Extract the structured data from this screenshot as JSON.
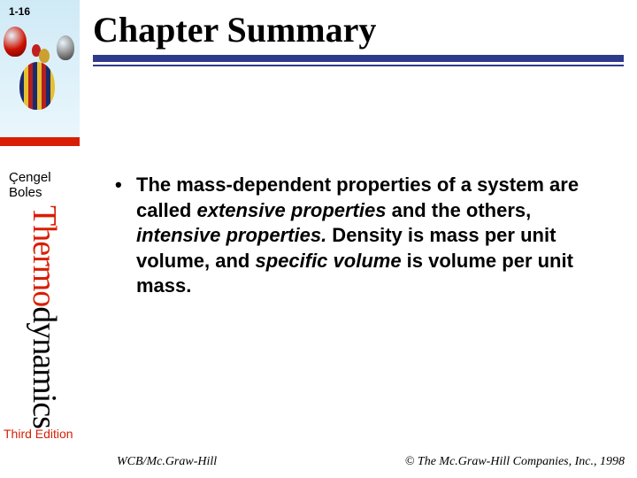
{
  "page_number": "1-16",
  "title": "Chapter Summary",
  "authors": {
    "line1": "Çengel",
    "line2": "Boles"
  },
  "spine": {
    "part1": "Thermo",
    "part2": "dynamics"
  },
  "edition": "Third Edition",
  "bullet": {
    "marker": "•",
    "seg1": "The mass-dependent properties of a system are called ",
    "seg2_it": "extensive properties",
    "seg3": " and the others, ",
    "seg4_it": "intensive properties.",
    "seg5": " Density",
    "seg6": " is mass per unit volume, and ",
    "seg7_it": "specific volume",
    "seg8": " is volume per unit mass."
  },
  "footer": {
    "left": "WCB/Mc.Graw-Hill",
    "right": "© The Mc.Graw-Hill Companies, Inc., 1998"
  },
  "colors": {
    "accent_red": "#d81e05",
    "rule_blue": "#2e3a8c"
  }
}
